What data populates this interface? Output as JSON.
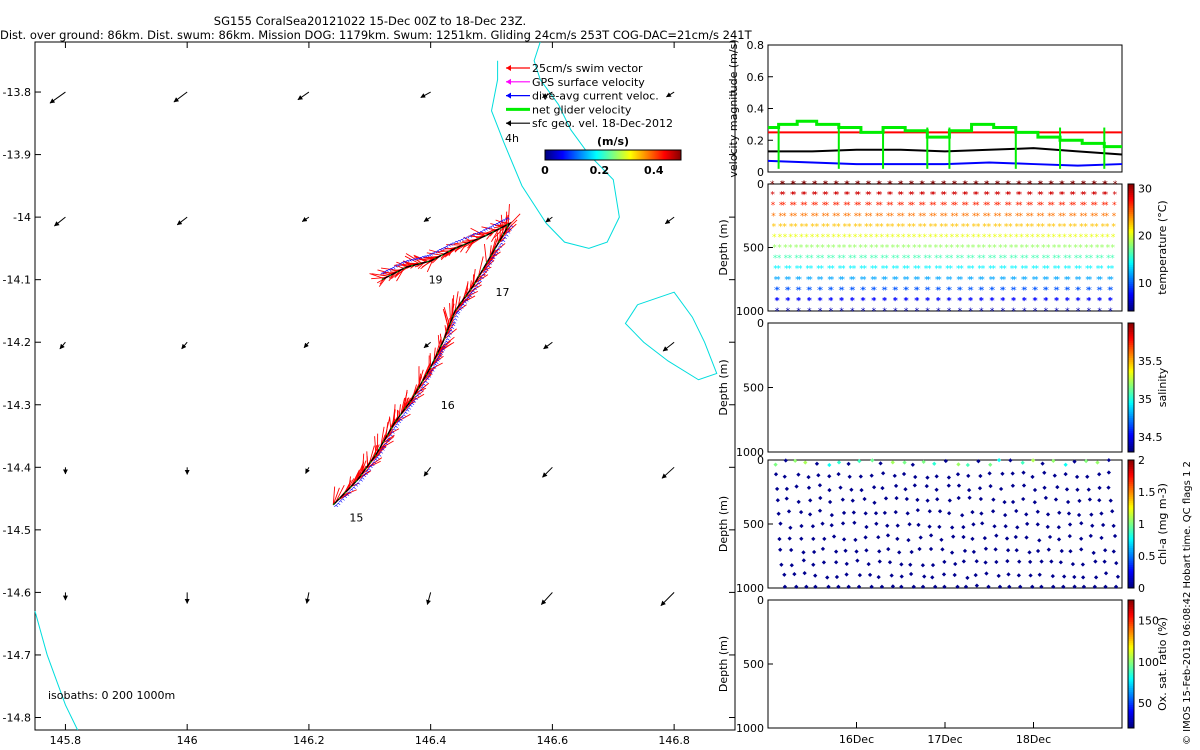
{
  "header": {
    "title_line1": "SG155 CoralSea20121022 15-Dec 00Z to 18-Dec 23Z.",
    "title_line2": "Dist. over ground: 86km. Dist. swum: 86km. Mission DOG: 1179km. Swum: 1251km. Gliding 24cm/s 253T COG-DAC=21cm/s 241T"
  },
  "footer": {
    "imos_credit": "© IMOS 15-Feb-2019 06:08:42 Hobart time. QC flags 1  2"
  },
  "colors": {
    "swim": "#ff0000",
    "gps": "#ff00ff",
    "current": "#0000ff",
    "net": "#00ee00",
    "geo": "#000000",
    "isobath": "#00dddd",
    "track": "#000000"
  },
  "chart_data": [
    {
      "id": "map",
      "type": "map",
      "xlim": [
        145.75,
        146.9
      ],
      "ylim": [
        -14.82,
        -13.72
      ],
      "xticks": [
        145.8,
        146.0,
        146.2,
        146.4,
        146.6,
        146.8
      ],
      "xtick_labels": [
        "145.8",
        "146",
        "146.2",
        "146.4",
        "146.6",
        "146.8"
      ],
      "yticks": [
        -13.8,
        -13.9,
        -14.0,
        -14.1,
        -14.2,
        -14.3,
        -14.4,
        -14.5,
        -14.6,
        -14.7,
        -14.8
      ],
      "ytick_labels": [
        "-13.8",
        "-13.9",
        "-14",
        "-14.1",
        "-14.2",
        "-14.3",
        "-14.4",
        "-14.5",
        "-14.6",
        "-14.7",
        "-14.8"
      ],
      "legend": [
        {
          "label": "25cm/s swim vector",
          "color": "#ff0000"
        },
        {
          "label": "GPS surface velocity",
          "color": "#ff00ff"
        },
        {
          "label": "dive-avg current veloc.",
          "color": "#0000ff"
        },
        {
          "label": "net glider velocity",
          "color": "#00ee00"
        },
        {
          "label": "sfc geo. vel. 18-Dec-2012",
          "color": "#000000"
        }
      ],
      "legend_extra": "4h",
      "colorbar": {
        "title": "(m/s)",
        "ticks": [
          "0",
          "0.2",
          "0.4"
        ],
        "range": [
          0,
          0.5
        ]
      },
      "isobath_label": "isobaths: 0   200  1000m",
      "track": [
        {
          "lon": 146.24,
          "lat": -14.46
        },
        {
          "lon": 146.28,
          "lat": -14.42
        },
        {
          "lon": 146.31,
          "lat": -14.38
        },
        {
          "lon": 146.34,
          "lat": -14.33
        },
        {
          "lon": 146.37,
          "lat": -14.29
        },
        {
          "lon": 146.4,
          "lat": -14.24
        },
        {
          "lon": 146.42,
          "lat": -14.2
        },
        {
          "lon": 146.44,
          "lat": -14.15
        },
        {
          "lon": 146.47,
          "lat": -14.11
        },
        {
          "lon": 146.5,
          "lat": -14.06
        },
        {
          "lon": 146.53,
          "lat": -14.01
        },
        {
          "lon": 146.49,
          "lat": -14.03
        },
        {
          "lon": 146.44,
          "lat": -14.05
        },
        {
          "lon": 146.4,
          "lat": -14.07
        },
        {
          "lon": 146.36,
          "lat": -14.08
        },
        {
          "lon": 146.32,
          "lat": -14.1
        }
      ],
      "day_labels": [
        {
          "text": "15",
          "lon": 146.26,
          "lat": -14.48
        },
        {
          "text": "16",
          "lon": 146.41,
          "lat": -14.3
        },
        {
          "text": "17",
          "lon": 146.5,
          "lat": -14.12
        },
        {
          "text": "19",
          "lon": 146.39,
          "lat": -14.1
        }
      ],
      "geo_vectors": [
        {
          "lon": 145.8,
          "lat": -13.8,
          "u": -0.7,
          "v": -0.5
        },
        {
          "lon": 146.0,
          "lat": -13.8,
          "u": -0.6,
          "v": -0.45
        },
        {
          "lon": 146.2,
          "lat": -13.8,
          "u": -0.5,
          "v": -0.35
        },
        {
          "lon": 146.4,
          "lat": -13.8,
          "u": -0.45,
          "v": -0.25
        },
        {
          "lon": 146.6,
          "lat": -13.8,
          "u": -0.45,
          "v": -0.25
        },
        {
          "lon": 146.8,
          "lat": -13.8,
          "u": -0.35,
          "v": -0.22
        },
        {
          "lon": 145.8,
          "lat": -14.0,
          "u": -0.5,
          "v": -0.4
        },
        {
          "lon": 146.0,
          "lat": -14.0,
          "u": -0.45,
          "v": -0.35
        },
        {
          "lon": 146.2,
          "lat": -14.0,
          "u": -0.3,
          "v": -0.2
        },
        {
          "lon": 146.4,
          "lat": -14.0,
          "u": -0.3,
          "v": -0.2
        },
        {
          "lon": 146.6,
          "lat": -14.0,
          "u": -0.3,
          "v": -0.22
        },
        {
          "lon": 146.8,
          "lat": -14.0,
          "u": -0.4,
          "v": -0.3
        },
        {
          "lon": 145.8,
          "lat": -14.2,
          "u": -0.25,
          "v": -0.3
        },
        {
          "lon": 146.0,
          "lat": -14.2,
          "u": -0.25,
          "v": -0.3
        },
        {
          "lon": 146.2,
          "lat": -14.2,
          "u": -0.22,
          "v": -0.25
        },
        {
          "lon": 146.4,
          "lat": -14.2,
          "u": -0.3,
          "v": -0.25
        },
        {
          "lon": 146.6,
          "lat": -14.2,
          "u": -0.4,
          "v": -0.3
        },
        {
          "lon": 146.8,
          "lat": -14.2,
          "u": -0.5,
          "v": -0.4
        },
        {
          "lon": 145.8,
          "lat": -14.4,
          "u": 0.0,
          "v": -0.3
        },
        {
          "lon": 146.0,
          "lat": -14.4,
          "u": 0.0,
          "v": -0.32
        },
        {
          "lon": 146.2,
          "lat": -14.4,
          "u": -0.15,
          "v": -0.28
        },
        {
          "lon": 146.4,
          "lat": -14.4,
          "u": -0.3,
          "v": -0.4
        },
        {
          "lon": 146.6,
          "lat": -14.4,
          "u": -0.45,
          "v": -0.45
        },
        {
          "lon": 146.8,
          "lat": -14.4,
          "u": -0.55,
          "v": -0.5
        },
        {
          "lon": 145.8,
          "lat": -14.6,
          "u": 0.0,
          "v": -0.35
        },
        {
          "lon": 146.0,
          "lat": -14.6,
          "u": 0.0,
          "v": -0.5
        },
        {
          "lon": 146.2,
          "lat": -14.6,
          "u": -0.1,
          "v": -0.5
        },
        {
          "lon": 146.4,
          "lat": -14.6,
          "u": -0.15,
          "v": -0.55
        },
        {
          "lon": 146.6,
          "lat": -14.6,
          "u": -0.5,
          "v": -0.55
        },
        {
          "lon": 146.8,
          "lat": -14.6,
          "u": -0.6,
          "v": -0.6
        }
      ],
      "isobath_0m": [
        {
          "lon": 145.75,
          "lat": -14.63
        },
        {
          "lon": 145.77,
          "lat": -14.7
        },
        {
          "lon": 145.8,
          "lat": -14.78
        },
        {
          "lon": 145.82,
          "lat": -14.82
        }
      ],
      "isobath_reef1": [
        {
          "lon": 146.58,
          "lat": -13.72
        },
        {
          "lon": 146.57,
          "lat": -13.75
        },
        {
          "lon": 146.58,
          "lat": -13.78
        },
        {
          "lon": 146.61,
          "lat": -13.82
        },
        {
          "lon": 146.63,
          "lat": -13.86
        },
        {
          "lon": 146.66,
          "lat": -13.9
        },
        {
          "lon": 146.7,
          "lat": -13.94
        },
        {
          "lon": 146.71,
          "lat": -14.0
        },
        {
          "lon": 146.69,
          "lat": -14.04
        },
        {
          "lon": 146.66,
          "lat": -14.05
        },
        {
          "lon": 146.62,
          "lat": -14.04
        },
        {
          "lon": 146.59,
          "lat": -14.01
        },
        {
          "lon": 146.55,
          "lat": -13.95
        },
        {
          "lon": 146.52,
          "lat": -13.88
        },
        {
          "lon": 146.5,
          "lat": -13.83
        },
        {
          "lon": 146.51,
          "lat": -13.78
        },
        {
          "lon": 146.51,
          "lat": -13.75
        }
      ],
      "isobath_reef2": [
        {
          "lon": 146.74,
          "lat": -14.14
        },
        {
          "lon": 146.8,
          "lat": -14.12
        },
        {
          "lon": 146.83,
          "lat": -14.16
        },
        {
          "lon": 146.85,
          "lat": -14.2
        },
        {
          "lon": 146.87,
          "lat": -14.25
        },
        {
          "lon": 146.84,
          "lat": -14.26
        },
        {
          "lon": 146.79,
          "lat": -14.23
        },
        {
          "lon": 146.75,
          "lat": -14.2
        },
        {
          "lon": 146.72,
          "lat": -14.17
        },
        {
          "lon": 146.74,
          "lat": -14.14
        }
      ]
    },
    {
      "id": "velocity",
      "type": "line",
      "ylabel": "velocity magnitude (m/s)",
      "xlim": [
        0,
        4.0
      ],
      "ylim": [
        0,
        0.8
      ],
      "yticks": [
        0,
        0.2,
        0.4,
        0.6,
        0.8
      ],
      "ytick_labels": [
        "0",
        "0.2",
        "0.4",
        "0.6",
        "0.8"
      ],
      "series": [
        {
          "name": "swim reference",
          "color": "#ff0000",
          "x": [
            0,
            4.0
          ],
          "values": [
            0.25,
            0.25
          ]
        },
        {
          "name": "net glider velocity",
          "color": "#00ee00",
          "x": [
            0,
            0.12,
            0.12,
            0.33,
            0.33,
            0.55,
            0.55,
            0.8,
            0.8,
            1.05,
            1.05,
            1.3,
            1.3,
            1.55,
            1.55,
            1.8,
            1.8,
            2.05,
            2.05,
            2.3,
            2.3,
            2.55,
            2.55,
            2.8,
            2.8,
            3.05,
            3.05,
            3.3,
            3.3,
            3.55,
            3.55,
            3.8,
            3.8,
            4.0
          ],
          "values": [
            0.28,
            0.28,
            0.3,
            0.3,
            0.32,
            0.32,
            0.3,
            0.3,
            0.28,
            0.28,
            0.25,
            0.25,
            0.28,
            0.28,
            0.26,
            0.26,
            0.22,
            0.22,
            0.26,
            0.26,
            0.3,
            0.3,
            0.28,
            0.28,
            0.25,
            0.25,
            0.22,
            0.22,
            0.2,
            0.2,
            0.18,
            0.18,
            0.16,
            0.16
          ]
        },
        {
          "name": "sfc geo velocity",
          "color": "#000000",
          "x": [
            0,
            0.5,
            1.0,
            1.5,
            2.0,
            2.5,
            3.0,
            3.5,
            4.0
          ],
          "values": [
            0.13,
            0.13,
            0.14,
            0.14,
            0.13,
            0.14,
            0.15,
            0.13,
            0.11
          ]
        },
        {
          "name": "dive-avg current",
          "color": "#0000ff",
          "x": [
            0,
            0.5,
            1.0,
            1.5,
            2.0,
            2.5,
            3.0,
            3.5,
            4.0
          ],
          "values": [
            0.07,
            0.06,
            0.05,
            0.05,
            0.05,
            0.06,
            0.05,
            0.04,
            0.05
          ]
        }
      ]
    },
    {
      "id": "temperature",
      "type": "scatter",
      "ylabel": "Depth (m)",
      "ylim": [
        1000,
        0
      ],
      "yticks": [
        0,
        500,
        1000
      ],
      "ytick_labels": [
        "0",
        "500",
        "1000"
      ],
      "profiles": 32,
      "max_depth": 1000,
      "colorbar": {
        "label": "temperature (°C)",
        "range": [
          4,
          31
        ],
        "ticks": [
          10,
          20,
          30
        ],
        "tick_labels": [
          "10",
          "20",
          "30"
        ]
      }
    },
    {
      "id": "salinity",
      "type": "scatter",
      "ylabel": "Depth (m)",
      "ylim": [
        1000,
        0
      ],
      "yticks": [
        0,
        500,
        1000
      ],
      "ytick_labels": [
        "0",
        "500",
        "1000"
      ],
      "colorbar": {
        "label": "salinity",
        "range": [
          34.3,
          36.0
        ],
        "ticks": [
          34.5,
          35,
          35.5
        ],
        "tick_labels": [
          "34.5",
          "35",
          "35.5"
        ]
      }
    },
    {
      "id": "chla",
      "type": "scatter",
      "ylabel": "Depth (m)",
      "ylim": [
        1000,
        0
      ],
      "yticks": [
        0,
        500,
        1000
      ],
      "ytick_labels": [
        "0",
        "500",
        "1000"
      ],
      "profiles": 32,
      "max_depth": 1000,
      "colorbar": {
        "label": "chl-a (mg m-3)",
        "range": [
          0,
          2
        ],
        "ticks": [
          0,
          0.5,
          1,
          1.5,
          2
        ],
        "tick_labels": [
          "0",
          "0.5",
          "1",
          "1.5",
          "2"
        ]
      }
    },
    {
      "id": "oxygen",
      "type": "scatter",
      "ylabel": "Depth (m)",
      "ylim": [
        1000,
        0
      ],
      "yticks": [
        0,
        500,
        1000
      ],
      "ytick_labels": [
        "0",
        "500",
        "1000"
      ],
      "xlim": [
        0,
        4.0
      ],
      "xticks": [
        1.0,
        2.0,
        3.0
      ],
      "xtick_labels": [
        "16Dec",
        "17Dec",
        "18Dec"
      ],
      "colorbar": {
        "label": "Ox. sat. ratio (%)",
        "range": [
          20,
          175
        ],
        "ticks": [
          50,
          100,
          150
        ],
        "tick_labels": [
          "50",
          "100",
          "150"
        ]
      }
    }
  ]
}
